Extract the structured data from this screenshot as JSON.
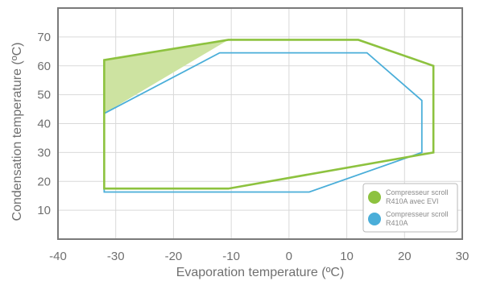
{
  "chart_data": {
    "type": "line",
    "title": "",
    "xlabel": "Evaporation temperature (ºC)",
    "ylabel": "Condensation temperature (ºC)",
    "xlim": [
      -40,
      30
    ],
    "ylim": [
      0,
      80
    ],
    "xticks": [
      "-40",
      "-30",
      "-20",
      "-10",
      "0",
      "10",
      "20",
      "30"
    ],
    "yticks": [
      "10",
      "20",
      "30",
      "40",
      "50",
      "60",
      "70"
    ],
    "grid": true,
    "legend_position": "bottom-right",
    "series": [
      {
        "name": "Compresseur scroll R410A avec EVI",
        "legend_lines": [
          "Compresseur scroll",
          "R410A avec EVI"
        ],
        "color": "#8dc23f",
        "fill_color": "#cde3a1",
        "closed": true,
        "points": [
          [
            -32,
            62
          ],
          [
            -10.5,
            69
          ],
          [
            12,
            69
          ],
          [
            25,
            60
          ],
          [
            25,
            30
          ],
          [
            -10.5,
            17.5
          ],
          [
            -32,
            17.5
          ]
        ],
        "shaded_region": [
          [
            -32,
            62
          ],
          [
            -10.5,
            69
          ],
          [
            -32,
            43.5
          ]
        ]
      },
      {
        "name": "Compresseur scroll R410A",
        "legend_lines": [
          "Compresseur scroll",
          "R410A"
        ],
        "color": "#4aaed9",
        "closed": true,
        "points": [
          [
            -32,
            43.5
          ],
          [
            -12,
            64.5
          ],
          [
            13.5,
            64.5
          ],
          [
            23,
            48
          ],
          [
            23,
            30
          ],
          [
            3.5,
            16.3
          ],
          [
            -32,
            16.3
          ]
        ]
      }
    ]
  }
}
